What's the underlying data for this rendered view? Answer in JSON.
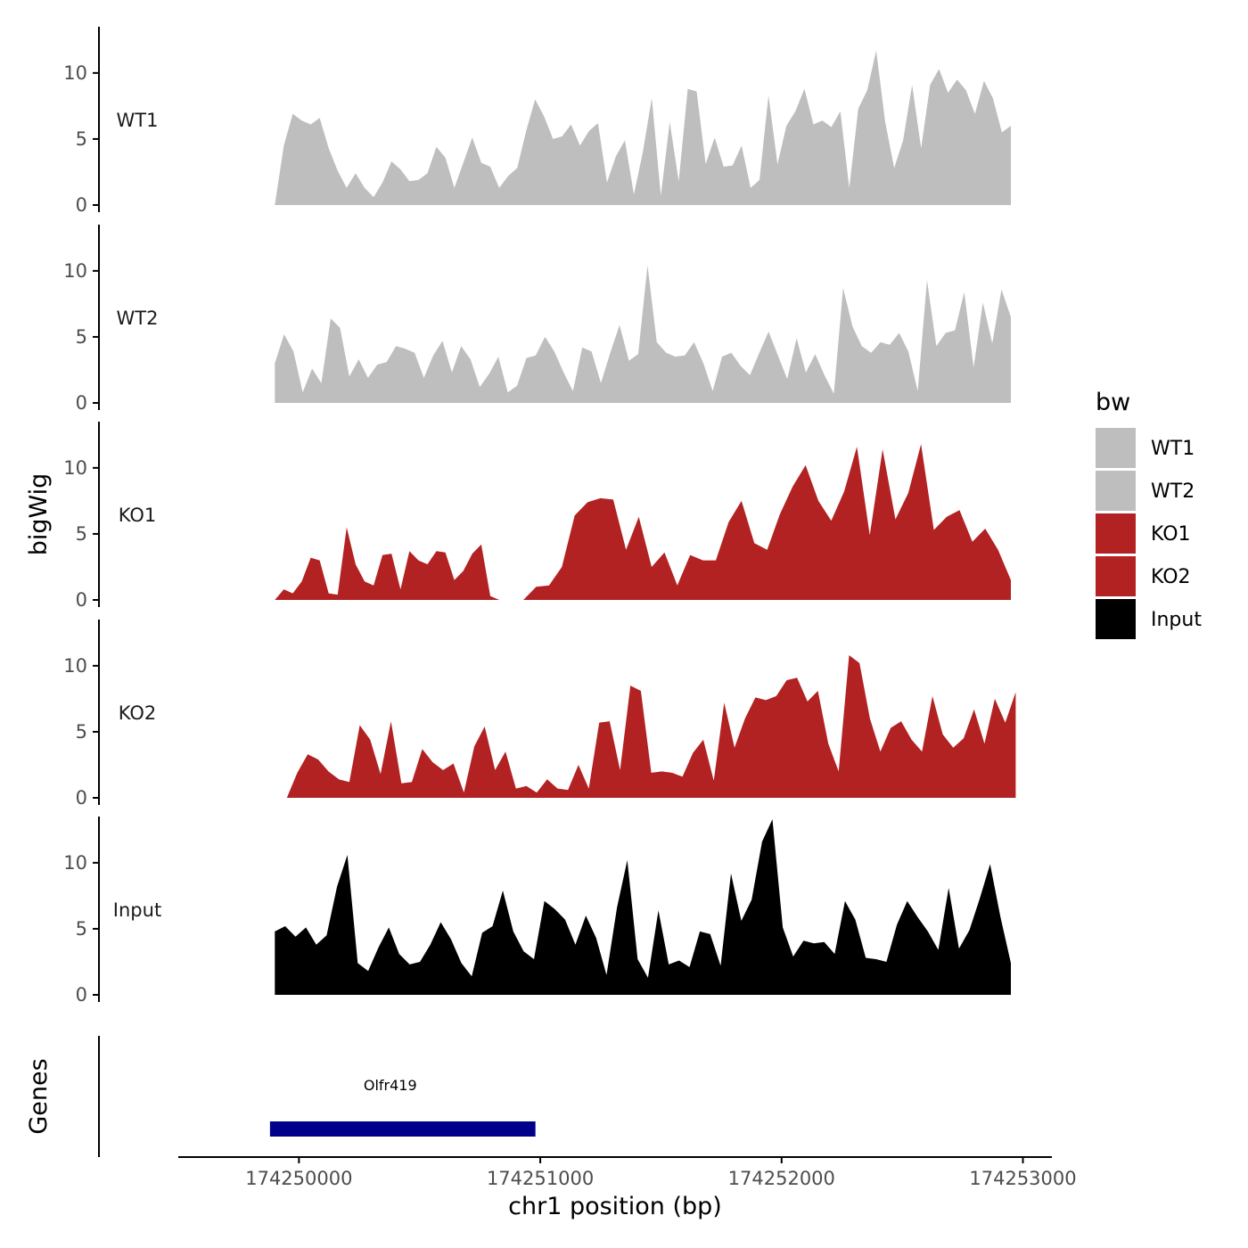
{
  "chart_data": {
    "type": "area",
    "ylabel": "bigWig",
    "genes_label": "Genes",
    "xlabel": "chr1 position (bp)",
    "x_ticks": [
      174250000,
      174251000,
      174252000,
      174253000
    ],
    "x_tick_labels": [
      "174250000",
      "174251000",
      "174252000",
      "174253000"
    ],
    "xlim": [
      174249500,
      174253120
    ],
    "ylim": [
      0,
      13.5
    ],
    "y_ticks": [
      0,
      5,
      10
    ],
    "y_tick_labels": [
      "0",
      "5",
      "10"
    ],
    "legend": {
      "title": "bw",
      "position": "right",
      "entries": [
        {
          "label": "WT1",
          "color": "#bebebe"
        },
        {
          "label": "WT2",
          "color": "#bebebe"
        },
        {
          "label": "KO1",
          "color": "#b22222"
        },
        {
          "label": "KO2",
          "color": "#b22222"
        },
        {
          "label": "Input",
          "color": "#000000"
        }
      ]
    },
    "series": [
      {
        "name": "WT1",
        "color": "#bebebe",
        "x_start": 174249900,
        "x_end": 174252950,
        "values": [
          0,
          4.5,
          6.9,
          6.4,
          6.1,
          6.6,
          4.3,
          2.6,
          1.3,
          2.4,
          1.3,
          0.6,
          1.7,
          3.3,
          2.7,
          1.8,
          1.9,
          2.4,
          4.4,
          3.6,
          1.3,
          3.2,
          5.1,
          3.2,
          2.9,
          1.3,
          2.2,
          2.8,
          5.6,
          8.0,
          6.7,
          5.0,
          5.2,
          6.1,
          4.5,
          5.6,
          6.2,
          1.7,
          3.7,
          4.9,
          0.8,
          4.0,
          8.1,
          0.7,
          6.3,
          1.8,
          8.8,
          8.6,
          3.1,
          5.1,
          2.9,
          3.0,
          4.5,
          1.3,
          1.9,
          8.3,
          3.1,
          6.0,
          7.1,
          8.8,
          6.1,
          6.4,
          5.9,
          7.1,
          1.3,
          7.3,
          8.7,
          11.7,
          6.3,
          2.8,
          4.9,
          9.1,
          4.3,
          9.1,
          10.3,
          8.5,
          9.5,
          8.7,
          6.9,
          9.4,
          8.1,
          5.5,
          6.0
        ]
      },
      {
        "name": "WT2",
        "color": "#bebebe",
        "x_start": 174249900,
        "x_end": 174252950,
        "values": [
          3.0,
          5.2,
          3.9,
          0.8,
          2.6,
          1.5,
          6.4,
          5.7,
          2.0,
          3.3,
          1.9,
          2.9,
          3.1,
          4.3,
          4.1,
          3.8,
          1.9,
          3.6,
          4.7,
          2.3,
          4.3,
          3.3,
          1.2,
          2.2,
          3.5,
          0.8,
          1.3,
          3.4,
          3.6,
          5.0,
          3.9,
          2.3,
          0.9,
          4.2,
          3.9,
          1.5,
          3.8,
          5.9,
          3.2,
          3.7,
          10.4,
          4.6,
          3.8,
          3.5,
          3.6,
          4.6,
          3.0,
          0.9,
          3.5,
          3.8,
          2.8,
          2.1,
          3.8,
          5.4,
          3.6,
          1.8,
          4.9,
          2.3,
          3.7,
          2.1,
          0.7,
          8.7,
          5.8,
          4.3,
          3.8,
          4.6,
          4.4,
          5.3,
          3.9,
          0.9,
          9.3,
          4.3,
          5.3,
          5.5,
          8.4,
          2.7,
          7.6,
          4.5,
          8.6,
          6.5
        ]
      },
      {
        "name": "KO1",
        "color": "#b22222",
        "x_start": 174249900,
        "x_end": 174252950,
        "segments": [
          {
            "x_start": 174249900,
            "x_end": 174250830,
            "values": [
              0,
              0.8,
              0.5,
              1.4,
              3.2,
              3.0,
              0.5,
              0.4,
              5.5,
              2.7,
              1.4,
              1.1,
              3.4,
              3.5,
              0.8,
              3.7,
              3.0,
              2.7,
              3.7,
              3.6,
              1.5,
              2.2,
              3.5,
              4.2,
              0.3,
              0
            ]
          },
          {
            "x_start": 174250930,
            "x_end": 174252950,
            "values": [
              0,
              1.0,
              1.1,
              2.5,
              6.4,
              7.4,
              7.7,
              7.6,
              3.8,
              6.3,
              2.5,
              3.6,
              1.1,
              3.4,
              3.0,
              3.0,
              5.9,
              7.5,
              4.3,
              3.8,
              6.5,
              8.6,
              10.2,
              7.5,
              6.0,
              8.2,
              11.6,
              4.9,
              11.4,
              6.1,
              8.1,
              11.8,
              5.3,
              6.3,
              6.8,
              4.4,
              5.4,
              3.8,
              1.5
            ]
          }
        ]
      },
      {
        "name": "KO2",
        "color": "#b22222",
        "x_start": 174249950,
        "x_end": 174252970,
        "values": [
          0,
          1.9,
          3.3,
          2.9,
          2.0,
          1.4,
          1.2,
          5.5,
          4.4,
          1.8,
          5.8,
          1.1,
          1.2,
          3.7,
          2.7,
          2.1,
          2.6,
          0.4,
          3.9,
          5.4,
          2.1,
          3.5,
          0.7,
          0.9,
          0.4,
          1.4,
          0.7,
          0.6,
          2.5,
          0.7,
          5.7,
          5.8,
          2.1,
          8.5,
          8.1,
          1.9,
          2.0,
          1.9,
          1.6,
          3.4,
          4.4,
          1.3,
          7.2,
          3.8,
          6.0,
          7.6,
          7.4,
          7.7,
          8.9,
          9.1,
          7.3,
          8.1,
          4.1,
          2.0,
          10.8,
          10.2,
          6.0,
          3.5,
          5.3,
          5.8,
          4.4,
          3.5,
          7.7,
          4.8,
          3.8,
          4.5,
          6.7,
          4.1,
          7.5,
          5.7,
          8.0
        ]
      },
      {
        "name": "Input",
        "color": "#000000",
        "x_start": 174249900,
        "x_end": 174252950,
        "values": [
          4.8,
          5.2,
          4.4,
          5.1,
          3.8,
          4.5,
          8.2,
          10.6,
          2.4,
          1.8,
          3.6,
          5.1,
          3.1,
          2.3,
          2.5,
          3.8,
          5.5,
          4.2,
          2.4,
          1.4,
          4.7,
          5.2,
          7.9,
          4.8,
          3.3,
          2.7,
          7.1,
          6.5,
          5.7,
          3.8,
          6.0,
          4.3,
          1.5,
          6.6,
          10.2,
          2.7,
          1.3,
          6.4,
          2.3,
          2.6,
          2.1,
          4.8,
          4.6,
          2.2,
          9.2,
          5.6,
          7.2,
          11.6,
          13.3,
          5.1,
          2.9,
          4.1,
          3.9,
          4.0,
          3.1,
          7.1,
          5.7,
          2.8,
          2.7,
          2.5,
          5.3,
          7.1,
          5.9,
          4.8,
          3.4,
          8.1,
          3.5,
          4.9,
          7.3,
          9.9,
          5.9,
          2.4
        ]
      }
    ],
    "genes": [
      {
        "name": "Olfr419",
        "start": 174249880,
        "end": 174250980,
        "color": "#00008b"
      }
    ]
  }
}
